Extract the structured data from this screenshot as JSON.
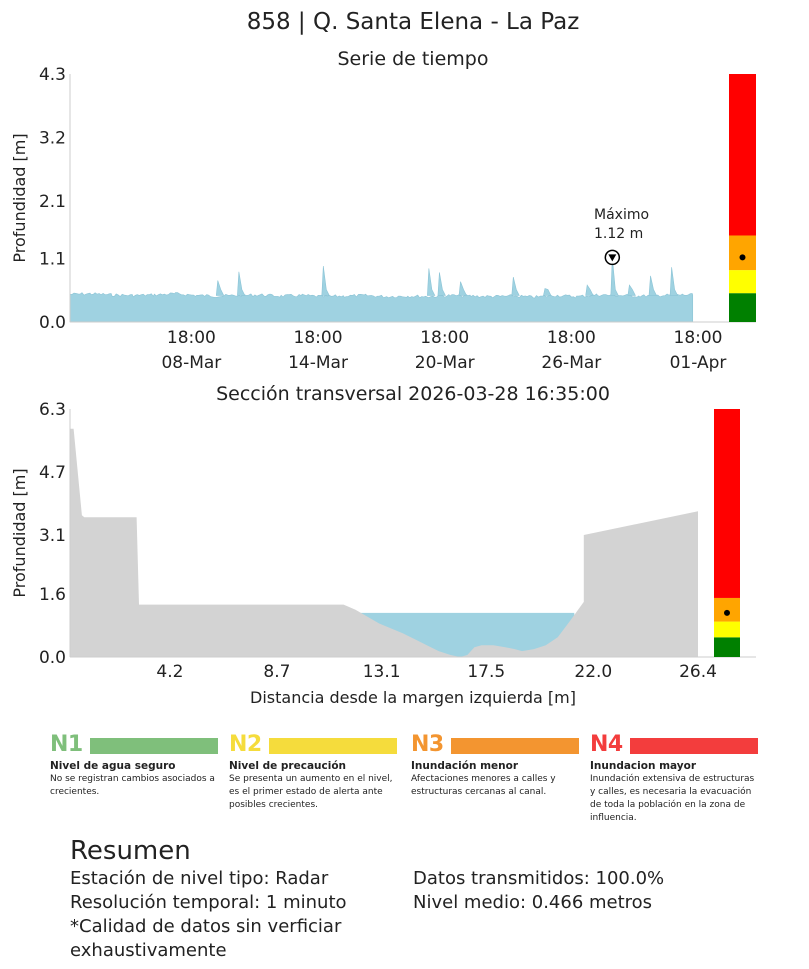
{
  "page_title": "858 | Q. Santa Elena - La Paz",
  "chart_data": [
    {
      "type": "area",
      "title": "Serie de tiempo",
      "ylabel": "Profundidad [m]",
      "xlabel": "",
      "yticks": [
        "0.0",
        "1.1",
        "2.1",
        "3.2",
        "4.3"
      ],
      "ylim": [
        0,
        4.3
      ],
      "xlim": [
        "2026-03-03 00:00",
        "2026-04-01 18:00"
      ],
      "xticks": [
        {
          "line1": "18:00",
          "line2": "08-Mar"
        },
        {
          "line1": "18:00",
          "line2": "14-Mar"
        },
        {
          "line1": "18:00",
          "line2": "20-Mar"
        },
        {
          "line1": "18:00",
          "line2": "26-Mar"
        },
        {
          "line1": "18:00",
          "line2": "01-Apr"
        }
      ],
      "series": [
        {
          "x": [
            "2026-03-03 00:00",
            "2026-03-04 00:00",
            "2026-03-05 00:00",
            "2026-03-06 00:00",
            "2026-03-07 00:00",
            "2026-03-08 00:00",
            "2026-03-09 00:00",
            "2026-03-10 00:00",
            "2026-03-11 00:00",
            "2026-03-12 00:00",
            "2026-03-13 00:00",
            "2026-03-14 00:00",
            "2026-03-15 00:00",
            "2026-03-16 00:00",
            "2026-03-17 00:00",
            "2026-03-18 00:00",
            "2026-03-19 00:00",
            "2026-03-20 00:00",
            "2026-03-21 00:00",
            "2026-03-22 00:00",
            "2026-03-23 00:00",
            "2026-03-24 00:00",
            "2026-03-25 00:00",
            "2026-03-26 00:00",
            "2026-03-27 00:00",
            "2026-03-28 00:00",
            "2026-03-29 00:00",
            "2026-03-30 00:00",
            "2026-03-31 00:00",
            "2026-04-01 00:00",
            "2026-04-01 12:00"
          ],
          "values": [
            0.48,
            0.49,
            0.47,
            0.46,
            0.47,
            0.49,
            0.46,
            0.45,
            0.46,
            0.47,
            0.45,
            0.46,
            0.44,
            0.45,
            0.46,
            0.44,
            0.45,
            0.44,
            0.46,
            0.45,
            0.44,
            0.45,
            0.43,
            0.46,
            0.44,
            0.47,
            0.46,
            0.45,
            0.46,
            0.47,
            0.47
          ]
        }
      ],
      "peaks": [
        {
          "x": "2026-03-10 00:00",
          "value": 0.72
        },
        {
          "x": "2026-03-11 00:00",
          "value": 0.87
        },
        {
          "x": "2026-03-15 00:00",
          "value": 0.97
        },
        {
          "x": "2026-03-20 00:00",
          "value": 0.93
        },
        {
          "x": "2026-03-20 12:00",
          "value": 0.86
        },
        {
          "x": "2026-03-21 12:00",
          "value": 0.7
        },
        {
          "x": "2026-03-24 00:00",
          "value": 0.78
        },
        {
          "x": "2026-03-25 12:00",
          "value": 0.58
        },
        {
          "x": "2026-03-27 12:00",
          "value": 0.64
        },
        {
          "x": "2026-03-28 16:35",
          "value": 1.12
        },
        {
          "x": "2026-03-29 12:00",
          "value": 0.64
        },
        {
          "x": "2026-03-30 12:00",
          "value": 0.8
        },
        {
          "x": "2026-03-31 12:00",
          "value": 0.95
        }
      ],
      "annotation": {
        "label": "Máximo",
        "value_text": "1.12 m",
        "x": "2026-03-28 16:35",
        "value": 1.12
      },
      "alert_bar": {
        "levels": [
          {
            "from": 0,
            "to": 0.5,
            "color": "#008000"
          },
          {
            "from": 0.5,
            "to": 0.9,
            "color": "#ffff00"
          },
          {
            "from": 0.9,
            "to": 1.5,
            "color": "#ffa500"
          },
          {
            "from": 1.5,
            "to": 4.3,
            "color": "#ff0000"
          }
        ],
        "current": 1.12
      },
      "fill_color": "#9fd2e1"
    },
    {
      "type": "area",
      "title": "Sección transversal 2026-03-28 16:35:00",
      "ylabel": "Profundidad [m]",
      "xlabel": "Distancia desde la margen izquierda [m]",
      "yticks": [
        "0.0",
        "1.6",
        "3.1",
        "4.7",
        "6.3"
      ],
      "ylim": [
        0,
        6.3
      ],
      "xticks": [
        "4.2",
        "8.7",
        "13.1",
        "17.5",
        "22.0",
        "26.4"
      ],
      "xlim": [
        0,
        26.4
      ],
      "profile": {
        "x": [
          0,
          0.15,
          0.5,
          0.6,
          2.0,
          2.1,
          2.8,
          2.9,
          11.5,
          12,
          13,
          14,
          14.5,
          15,
          15.5,
          16,
          16.4,
          16.7,
          17,
          17.3,
          17.8,
          18.3,
          18.7,
          19,
          19.5,
          20,
          20.5,
          21,
          21.6,
          21.6,
          26.4
        ],
        "y": [
          5.8,
          5.8,
          3.6,
          3.55,
          3.55,
          3.55,
          3.55,
          1.33,
          1.33,
          1.2,
          0.85,
          0.6,
          0.45,
          0.3,
          0.15,
          0.05,
          0.0,
          0.05,
          0.25,
          0.3,
          0.3,
          0.25,
          0.2,
          0.15,
          0.2,
          0.3,
          0.5,
          0.9,
          1.4,
          3.1,
          3.7
        ]
      },
      "water_level": 1.12,
      "ground_color": "#d3d3d3",
      "water_color": "#9fd2e1",
      "alert_bar": {
        "levels": [
          {
            "from": 0,
            "to": 0.5,
            "color": "#008000"
          },
          {
            "from": 0.5,
            "to": 0.9,
            "color": "#ffff00"
          },
          {
            "from": 0.9,
            "to": 1.5,
            "color": "#ffa500"
          },
          {
            "from": 1.5,
            "to": 6.3,
            "color": "#ff0000"
          }
        ],
        "current": 1.12
      }
    }
  ],
  "legend": [
    {
      "code": "N1",
      "color": "#7fbf7b",
      "code_color": "#7fbf7b",
      "name": "Nivel de agua seguro",
      "desc": "No se registran cambios asociados a crecientes."
    },
    {
      "code": "N2",
      "color": "#f5dc3c",
      "code_color": "#f5dc3c",
      "name": "Nivel de precaución",
      "desc": "Se presenta un aumento en el nivel, es el primer estado de alerta ante posibles crecientes."
    },
    {
      "code": "N3",
      "color": "#f39530",
      "code_color": "#f39530",
      "name": "Inundación menor",
      "desc": "Afectaciones menores a calles y estructuras cercanas al canal."
    },
    {
      "code": "N4",
      "color": "#f33d3d",
      "code_color": "#f33d3d",
      "name": "Inundacion mayor",
      "desc": "Inundación extensiva de estructuras y calles, es necesaria la evacuación de toda la población en la zona de influencia."
    }
  ],
  "summary": {
    "title": "Resumen",
    "station": "Estación de nivel tipo: Radar",
    "resolution": "Resolución temporal: 1 minuto",
    "quality_note": "*Calidad de datos sin verficiar exhaustivamente",
    "transmitted": "Datos transmitidos: 100.0%",
    "mean_level": "Nivel medio: 0.466 metros"
  }
}
